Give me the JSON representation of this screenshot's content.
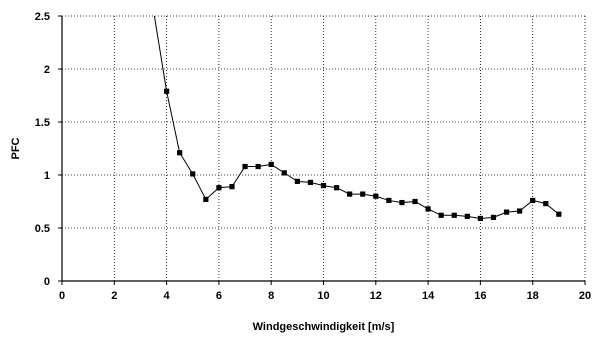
{
  "chart_data": {
    "type": "line",
    "title": "",
    "xlabel": "Windgeschwindigkeit  [m/s]",
    "ylabel": "PFC",
    "xlim": [
      0,
      20
    ],
    "ylim": [
      0,
      2.5
    ],
    "x_ticks": [
      0,
      2,
      4,
      6,
      8,
      10,
      12,
      14,
      16,
      18,
      20
    ],
    "y_ticks": [
      0,
      0.5,
      1,
      1.5,
      2,
      2.5
    ],
    "x_tick_labels": [
      "0",
      "2",
      "4",
      "6",
      "8",
      "10",
      "12",
      "14",
      "16",
      "18",
      "20"
    ],
    "y_tick_labels": [
      "0",
      "0.5",
      "1",
      "1.5",
      "2",
      "2.5"
    ],
    "grid": true,
    "grid_style": "dotted",
    "legend": "none",
    "colors": {
      "series": "#000000",
      "grid": "#000000",
      "axis": "#000000",
      "background": "#ffffff"
    },
    "series": [
      {
        "marker": "square",
        "x": [
          3.5,
          4.0,
          4.5,
          5.0,
          5.5,
          6.0,
          6.5,
          7.0,
          7.5,
          8.0,
          8.5,
          9.0,
          9.5,
          10.0,
          10.5,
          11.0,
          11.5,
          12.0,
          12.5,
          13.0,
          13.5,
          14.0,
          14.5,
          15.0,
          15.5,
          16.0,
          16.5,
          17.0,
          17.5,
          18.0,
          18.5,
          19.0
        ],
        "y": [
          2.55,
          1.79,
          1.21,
          1.01,
          0.77,
          0.88,
          0.89,
          1.08,
          1.08,
          1.1,
          1.02,
          0.94,
          0.93,
          0.9,
          0.88,
          0.82,
          0.82,
          0.8,
          0.76,
          0.74,
          0.75,
          0.68,
          0.62,
          0.62,
          0.61,
          0.59,
          0.6,
          0.65,
          0.66,
          0.76,
          0.73,
          0.63
        ],
        "markers_from_index": 1
      }
    ]
  }
}
